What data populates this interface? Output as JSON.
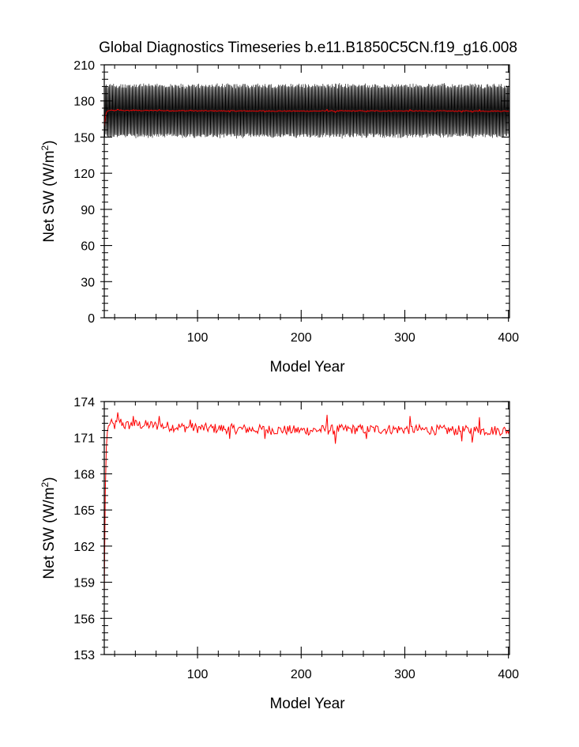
{
  "colors": {
    "monthly_series": "#000000",
    "annual_series": "#ff0000",
    "axis": "#000000",
    "background": "#ffffff"
  },
  "chart_data": [
    {
      "type": "line",
      "title": "Global Diagnostics Timeseries b.e11.B1850C5CN.f19_g16.008",
      "xlabel": "Model Year",
      "ylabel_main": "Net SW (W/m",
      "ylabel_sup": "2",
      "ylabel_close": ")",
      "xlim": [
        10,
        401
      ],
      "ylim": [
        0,
        210
      ],
      "xticks": [
        100,
        200,
        300,
        400
      ],
      "yticks": [
        0,
        30,
        60,
        90,
        120,
        150,
        180,
        210
      ],
      "grid": false,
      "legend": "none",
      "series": [
        {
          "style": "monthly",
          "start_year": 10,
          "end_year": 401,
          "samples_per_year": 12,
          "annual_mean": 171.8,
          "min": 147,
          "max": 193
        },
        {
          "style": "annual",
          "values_ref": "annual_mean"
        }
      ]
    },
    {
      "type": "line",
      "xlabel": "Model Year",
      "ylabel_main": "Net SW (W/m",
      "ylabel_sup": "2",
      "ylabel_close": ")",
      "xlim": [
        10,
        401
      ],
      "ylim": [
        153,
        174
      ],
      "xticks": [
        100,
        200,
        300,
        400
      ],
      "yticks": [
        153,
        156,
        159,
        162,
        165,
        168,
        171,
        174
      ],
      "grid": false,
      "legend": "none",
      "series": [
        {
          "style": "annual",
          "start_year": 10,
          "end_year": 401,
          "anchor_points": [
            [
              10,
              158.0
            ],
            [
              11,
              166.5
            ],
            [
              12,
              170.2
            ],
            [
              13,
              171.5
            ],
            [
              15,
              172.2
            ],
            [
              20,
              172.0
            ],
            [
              25,
              172.4
            ],
            [
              30,
              172.0
            ],
            [
              40,
              172.1
            ],
            [
              60,
              172.0
            ],
            [
              100,
              171.8
            ],
            [
              150,
              171.7
            ],
            [
              200,
              171.6
            ],
            [
              250,
              171.7
            ],
            [
              300,
              171.7
            ],
            [
              350,
              171.6
            ],
            [
              401,
              171.6
            ]
          ],
          "noise_amplitude": 0.42,
          "peaks": [
            [
              23,
              173.1
            ],
            [
              38,
              172.8
            ],
            [
              63,
              172.8
            ],
            [
              93,
              172.5
            ],
            [
              225,
              172.9
            ],
            [
              305,
              172.8
            ],
            [
              372,
              172.7
            ]
          ],
          "troughs": [
            [
              131,
              170.9
            ],
            [
              165,
              170.9
            ],
            [
              233,
              170.5
            ],
            [
              263,
              170.9
            ],
            [
              355,
              170.7
            ],
            [
              365,
              170.6
            ]
          ]
        }
      ]
    }
  ]
}
